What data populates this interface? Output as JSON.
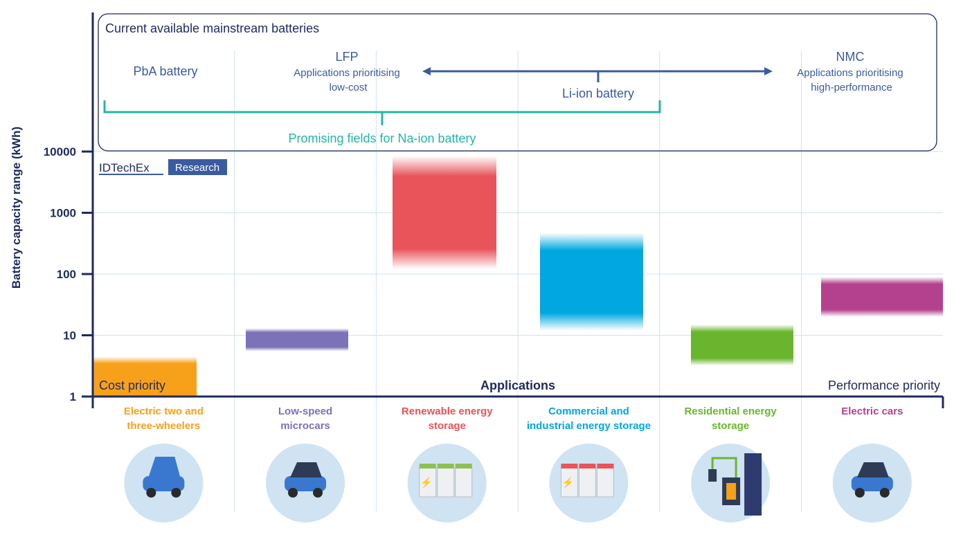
{
  "header": {
    "box_title": "Current available mainstream batteries",
    "pba": "PbA battery",
    "lfp": "LFP",
    "lfp_sub1": "Applications prioritising",
    "lfp_sub2": "low-cost",
    "liion": "Li-ion battery",
    "nmc": "NMC",
    "nmc_sub1": "Applications prioritising",
    "nmc_sub2": "high-performance",
    "naion": "Promising fields for Na-ion battery"
  },
  "logo": {
    "brand": "IDTechEx",
    "tag": "Research"
  },
  "labels": {
    "cost": "Cost priority",
    "applications": "Applications",
    "performance": "Performance priority"
  },
  "colors": {
    "axis": "#1e2a5e",
    "blue_text": "#3a5ba0",
    "teal": "#26b5a5",
    "grid": "#cfe2f0"
  },
  "chart_data": {
    "type": "bar",
    "subtype": "floating-range",
    "ylabel": "Battery capacity range (kWh)",
    "yscale": "log",
    "ylim": [
      1,
      10000
    ],
    "yticks": [
      "1",
      "10",
      "100",
      "1000",
      "10000"
    ],
    "grid": true,
    "categories": [
      {
        "line1": "Electric two and",
        "line2": "three-wheelers",
        "color": "#f7a11a",
        "range": [
          1,
          4.5
        ],
        "icon": "three-wheeler-icon"
      },
      {
        "line1": "Low-speed",
        "line2": "microcars",
        "color": "#7b72b8",
        "range": [
          5.5,
          13
        ],
        "icon": "microcar-icon"
      },
      {
        "line1": "Renewable energy",
        "line2": "storage",
        "color": "#e8545a",
        "range": [
          120,
          8500
        ],
        "icon": "energy-storage-container-icon"
      },
      {
        "line1": "Commercial and",
        "line2": "industrial energy storage",
        "color": "#00a7e1",
        "range": [
          12,
          470
        ],
        "icon": "commercial-storage-icon"
      },
      {
        "line1": "Residential energy",
        "line2": "storage",
        "color": "#6bb52e",
        "range": [
          3.2,
          15
        ],
        "icon": "home-battery-icon"
      },
      {
        "line1": "Electric cars",
        "line2": "",
        "color": "#b4418e",
        "range": [
          20,
          90
        ],
        "icon": "electric-car-icon"
      }
    ]
  }
}
